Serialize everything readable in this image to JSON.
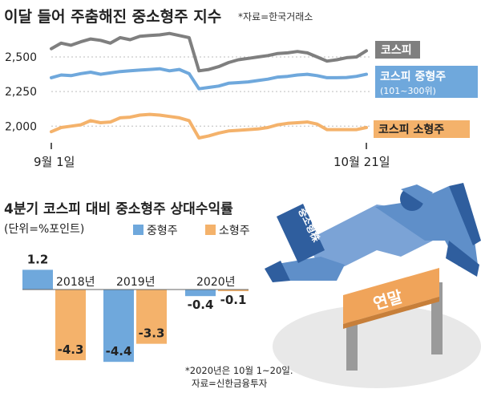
{
  "colors": {
    "kospi": "#7f7f7f",
    "mid": "#6fa8dc",
    "small": "#f4b26b",
    "grid": "#bdbdbd",
    "text": "#222222",
    "illus_blue": "#7ba3d6",
    "illus_navy": "#2f5e9e",
    "illus_orange": "#f0a45a",
    "illus_floor": "#e8e8e8"
  },
  "top": {
    "title": "이달 들어 주춤해진 중소형주 지수",
    "source": "*자료=한국거래소"
  },
  "bottom": {
    "title": "4분기 코스피 대비 중소형주 상대수익률",
    "unit": "(단위=%포인트)",
    "footnote1": "*2020년은 10월 1~20일.",
    "footnote2": "자료=신한금융투자"
  },
  "illustration": {
    "sign": "중소형株",
    "hurdle": "연말",
    "icons": [
      "businessman-icon",
      "hurdle-icon"
    ]
  },
  "chart_data": [
    {
      "type": "line",
      "title": "이달 들어 주춤해진 중소형주 지수",
      "x_labels": [
        "9월 1일",
        "10월 21일"
      ],
      "x": [
        "9/1",
        "9/2",
        "9/3",
        "9/4",
        "9/7",
        "9/8",
        "9/9",
        "9/10",
        "9/11",
        "9/14",
        "9/15",
        "9/16",
        "9/17",
        "9/18",
        "9/21",
        "9/22",
        "9/23",
        "9/24",
        "9/25",
        "9/28",
        "9/29",
        "10/5",
        "10/6",
        "10/7",
        "10/8",
        "10/12",
        "10/13",
        "10/14",
        "10/15",
        "10/16",
        "10/19",
        "10/20",
        "10/21"
      ],
      "y_ticks": [
        2000,
        2250,
        2500
      ],
      "y_tick_labels": [
        "2,000",
        "2,250",
        "2,500"
      ],
      "ylim": [
        1880,
        2680
      ],
      "series": [
        {
          "name": "코스피",
          "color": "#7f7f7f",
          "values": [
            2560,
            2600,
            2585,
            2610,
            2630,
            2620,
            2600,
            2640,
            2625,
            2650,
            2655,
            2660,
            2670,
            2655,
            2640,
            2400,
            2410,
            2430,
            2460,
            2480,
            2490,
            2500,
            2510,
            2525,
            2530,
            2540,
            2530,
            2500,
            2470,
            2480,
            2495,
            2500,
            2545
          ]
        },
        {
          "name": "코스피 중형주",
          "sublabel": "(101~300위)",
          "color": "#6fa8dc",
          "values": [
            2350,
            2370,
            2365,
            2380,
            2390,
            2375,
            2385,
            2395,
            2400,
            2405,
            2410,
            2415,
            2400,
            2410,
            2380,
            2270,
            2280,
            2290,
            2310,
            2315,
            2320,
            2330,
            2340,
            2355,
            2360,
            2370,
            2375,
            2365,
            2350,
            2350,
            2352,
            2360,
            2375
          ]
        },
        {
          "name": "코스피 소형주",
          "color": "#f4b26b",
          "values": [
            1960,
            1990,
            2000,
            2010,
            2040,
            2025,
            2030,
            2060,
            2065,
            2080,
            2085,
            2080,
            2070,
            2060,
            2040,
            1915,
            1930,
            1950,
            1965,
            1970,
            1975,
            1980,
            1990,
            2010,
            2020,
            2025,
            2030,
            2015,
            1975,
            1975,
            1975,
            1975,
            1990
          ]
        }
      ]
    },
    {
      "type": "bar",
      "title": "4분기 코스피 대비 중소형주 상대수익률",
      "unit": "(단위=%포인트)",
      "categories": [
        "2018년",
        "2019년",
        "2020년"
      ],
      "series": [
        {
          "name": "중형주",
          "color": "#6fa8dc",
          "values": [
            1.2,
            -4.4,
            -0.4
          ],
          "labels": [
            "1.2",
            "-4.4",
            "-0.4"
          ]
        },
        {
          "name": "소형주",
          "color": "#f4b26b",
          "values": [
            -4.3,
            -3.3,
            -0.1
          ],
          "labels": [
            "-4.3",
            "-3.3",
            "-0.1"
          ]
        }
      ]
    }
  ]
}
